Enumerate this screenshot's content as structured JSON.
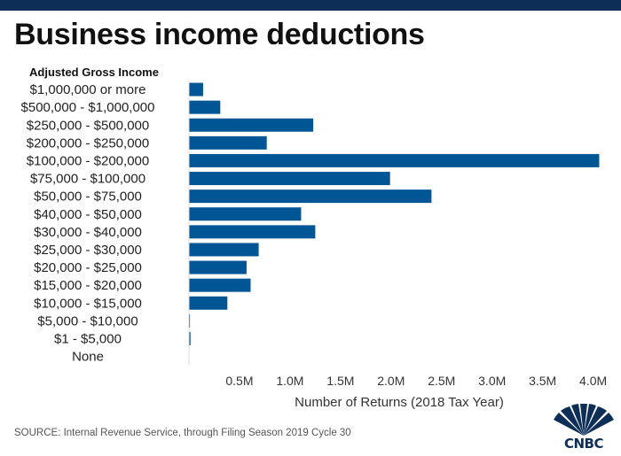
{
  "header": {
    "title": "Business income deductions"
  },
  "chart_data": {
    "type": "bar",
    "orientation": "horizontal",
    "category_axis_title": "Adjusted Gross Income",
    "xlabel": "Number of Returns (2018 Tax Year)",
    "xlim": [
      0,
      4100000
    ],
    "xticks": [
      500000,
      1000000,
      1500000,
      2000000,
      2500000,
      3000000,
      3500000,
      4000000
    ],
    "xtick_labels": [
      "0.5M",
      "1.0M",
      "1.5M",
      "2.0M",
      "2.5M",
      "3.0M",
      "3.5M",
      "4.0M"
    ],
    "grid": false,
    "bar_color": "#005594",
    "categories": [
      "$1,000,000 or more",
      "$500,000 - $1,000,000",
      "$250,000 - $500,000",
      "$200,000 - $250,000",
      "$100,000 - $200,000",
      "$75,000 - $100,000",
      "$50,000 - $75,000",
      "$40,000 - $50,000",
      "$30,000 - $40,000",
      "$25,000 - $30,000",
      "$20,000 - $25,000",
      "$15,000 - $20,000",
      "$10,000 - $15,000",
      "$5,000 - $10,000",
      "$1 - $5,000",
      "None"
    ],
    "values": [
      140000,
      310000,
      1230000,
      770000,
      4060000,
      1990000,
      2400000,
      1110000,
      1250000,
      690000,
      570000,
      610000,
      380000,
      10000,
      15000,
      0
    ]
  },
  "footer": {
    "source": "SOURCE: Internal Revenue Service, through Filing Season 2019 Cycle 30",
    "logo_text": "CNBC"
  }
}
